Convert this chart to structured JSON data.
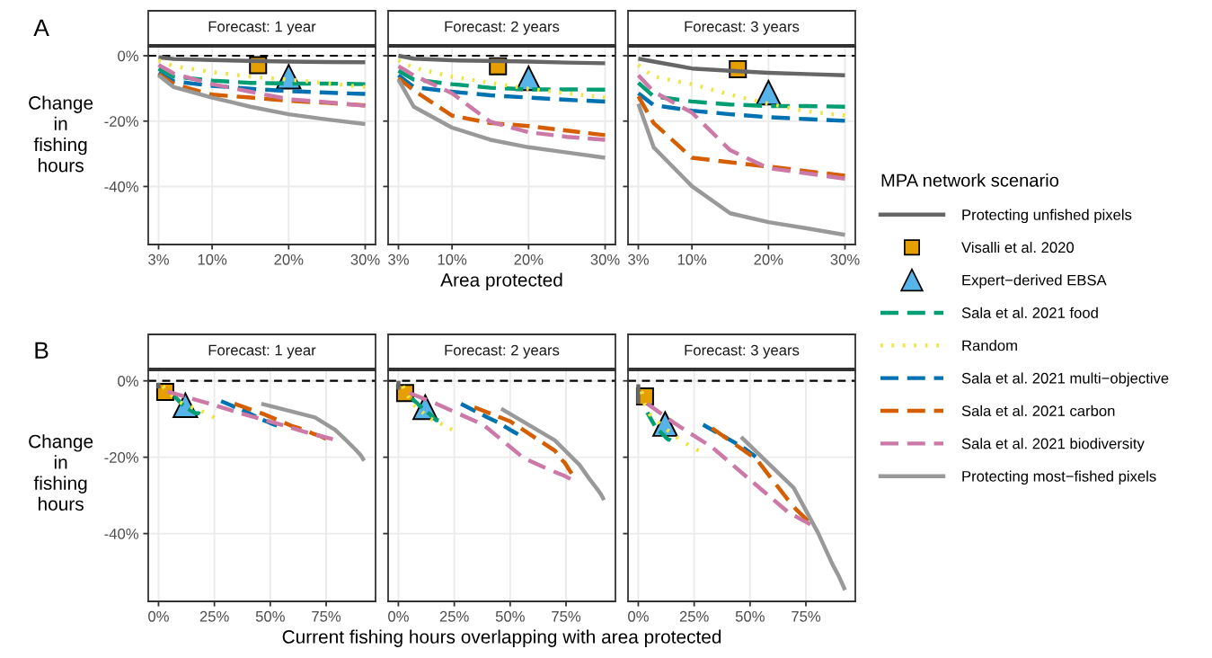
{
  "chart_data": [
    {
      "type": "line",
      "title": "Forecast: 1 year",
      "ylabel": "Change\nin\nfishing\nhours",
      "annotations": [
        "A"
      ],
      "legend": "right",
      "legend_title": "MPA network scenario",
      "grid": true,
      "xlim": [
        1.65,
        31.35
      ],
      "xticks": [
        {
          "value": 3,
          "label": "3%"
        },
        {
          "value": 10,
          "label": "10%"
        },
        {
          "value": 20,
          "label": "20%"
        },
        {
          "value": 30,
          "label": "30%"
        }
      ],
      "ylim": [
        -57.75,
        2.75
      ],
      "yticks": [
        {
          "value": -40,
          "label": "-40%"
        },
        {
          "value": -20,
          "label": "-20%"
        },
        {
          "value": 0,
          "label": "0%"
        }
      ],
      "ref_lines": [
        {
          "axis": "y",
          "value": 0,
          "color": "#000000",
          "line_style": "dashed"
        }
      ],
      "x": [
        3,
        5,
        10,
        15,
        20,
        25,
        30
      ],
      "series": [
        {
          "name": "Protecting unfished pixels",
          "color": "#666666",
          "line_style": "solid",
          "values": [
            -0.5,
            -1.0,
            -1.3,
            -1.6,
            -1.8,
            -1.9,
            -2.0
          ]
        },
        {
          "name": "Visalli et al. 2020",
          "type": "scatter",
          "marker": "square",
          "color": "#e69f00",
          "x": [
            16
          ],
          "values": [
            -2.9
          ]
        },
        {
          "name": "Expert−derived EBSA",
          "type": "scatter",
          "marker": "triangle",
          "color": "#56b4e9",
          "x": [
            20
          ],
          "values": [
            -6.4
          ]
        },
        {
          "name": "Sala et al. 2021 food",
          "color": "#009e73",
          "line_style": "dashed",
          "values": [
            -4,
            -6.4,
            -7.6,
            -8.3,
            -8.5,
            -8.5,
            -8.7
          ]
        },
        {
          "name": "Random",
          "color": "#f0e442",
          "line_style": "dotted",
          "values": [
            -1.4,
            -3.2,
            -5,
            -6.4,
            -7.3,
            -8.4,
            -9.6
          ]
        },
        {
          "name": "Sala et al. 2021 multi−objective",
          "color": "#0072b2",
          "line_style": "dashed",
          "values": [
            -5.3,
            -7.8,
            -9.2,
            -10.1,
            -10.8,
            -11.3,
            -11.7
          ]
        },
        {
          "name": "Sala et al. 2021 carbon",
          "color": "#d55e00",
          "line_style": "dashed",
          "values": [
            -5.6,
            -8.7,
            -11.9,
            -12.8,
            -13.8,
            -14.4,
            -15.2
          ]
        },
        {
          "name": "Sala et al. 2021 biodiversity",
          "color": "#cc79a7",
          "line_style": "dashed",
          "values": [
            -2.8,
            -5.5,
            -8.7,
            -11,
            -13.3,
            -14.2,
            -15.3
          ]
        },
        {
          "name": "Protecting most−fished pixels",
          "color": "#999999",
          "line_style": "solid",
          "values": [
            -6,
            -9.6,
            -12.8,
            -15.6,
            -17.9,
            -19.5,
            -20.9
          ]
        }
      ]
    },
    {
      "type": "line",
      "title": "Forecast: 2 years",
      "xlabel": "Area protected",
      "tick_labels": "x",
      "grid": true,
      "xlim": [
        1.65,
        31.35
      ],
      "xticks": [
        {
          "value": 3,
          "label": "3%"
        },
        {
          "value": 10,
          "label": "10%"
        },
        {
          "value": 20,
          "label": "20%"
        },
        {
          "value": 30,
          "label": "30%"
        }
      ],
      "ylim": [
        -57.75,
        2.75
      ],
      "ref_lines": [
        {
          "axis": "y",
          "value": 0,
          "color": "#000000",
          "line_style": "dashed"
        }
      ],
      "x": [
        3,
        5,
        10,
        15,
        20,
        25,
        30
      ],
      "series": [
        {
          "color": "#666666",
          "line_style": "solid",
          "values": [
            0,
            -0.9,
            -1.4,
            -1.6,
            -1.8,
            -2.1,
            -2.3
          ]
        },
        {
          "type": "scatter",
          "marker": "square",
          "color": "#e69f00",
          "x": [
            16
          ],
          "values": [
            -3.2
          ]
        },
        {
          "type": "scatter",
          "marker": "triangle",
          "color": "#56b4e9",
          "x": [
            20
          ],
          "values": [
            -6.9
          ]
        },
        {
          "color": "#009e73",
          "line_style": "dashed",
          "values": [
            -4.6,
            -7.3,
            -8.7,
            -9.8,
            -10.3,
            -10.3,
            -10.4
          ]
        },
        {
          "color": "#f0e442",
          "line_style": "dotted",
          "values": [
            -1.4,
            -3.7,
            -6.4,
            -8.3,
            -10.1,
            -11.5,
            -12.8
          ]
        },
        {
          "color": "#0072b2",
          "line_style": "dashed",
          "values": [
            -6,
            -9.6,
            -11,
            -12.1,
            -12.8,
            -13.5,
            -14
          ]
        },
        {
          "color": "#d55e00",
          "line_style": "dashed",
          "values": [
            -6.9,
            -10.6,
            -18.3,
            -20.6,
            -21.5,
            -22.9,
            -24.3
          ]
        },
        {
          "color": "#cc79a7",
          "line_style": "dashed",
          "values": [
            -3.2,
            -6,
            -11.5,
            -20.2,
            -23.4,
            -24.8,
            -25.7
          ]
        },
        {
          "color": "#999999",
          "line_style": "solid",
          "values": [
            -7.3,
            -15.6,
            -22,
            -25.7,
            -28,
            -29.6,
            -31.2
          ]
        }
      ]
    },
    {
      "type": "line",
      "title": "Forecast: 3 years",
      "tick_labels": "x",
      "grid": true,
      "xlim": [
        1.65,
        31.35
      ],
      "xticks": [
        {
          "value": 3,
          "label": "3%"
        },
        {
          "value": 10,
          "label": "10%"
        },
        {
          "value": 20,
          "label": "20%"
        },
        {
          "value": 30,
          "label": "30%"
        }
      ],
      "ylim": [
        -57.75,
        2.75
      ],
      "ref_lines": [
        {
          "axis": "y",
          "value": 0,
          "color": "#000000",
          "line_style": "dashed"
        }
      ],
      "x": [
        3,
        5,
        10,
        15,
        20,
        25,
        30
      ],
      "series": [
        {
          "color": "#666666",
          "line_style": "solid",
          "values": [
            -0.9,
            -1.8,
            -3.9,
            -4.6,
            -5.2,
            -5.6,
            -6
          ]
        },
        {
          "type": "scatter",
          "marker": "square",
          "color": "#e69f00",
          "x": [
            16
          ],
          "values": [
            -4.1
          ]
        },
        {
          "type": "scatter",
          "marker": "triangle",
          "color": "#56b4e9",
          "x": [
            20
          ],
          "values": [
            -11.3
          ]
        },
        {
          "color": "#009e73",
          "line_style": "dashed",
          "values": [
            -8.3,
            -12.4,
            -14,
            -14.9,
            -15.4,
            -15.4,
            -15.6
          ]
        },
        {
          "color": "#f0e442",
          "line_style": "dotted",
          "values": [
            -2.8,
            -6.4,
            -8.7,
            -11.9,
            -14.7,
            -17,
            -18.3
          ]
        },
        {
          "color": "#0072b2",
          "line_style": "dashed",
          "values": [
            -11.5,
            -15.1,
            -16.8,
            -17.9,
            -18.8,
            -19.4,
            -19.9
          ]
        },
        {
          "color": "#d55e00",
          "line_style": "dashed",
          "values": [
            -12.4,
            -20.6,
            -31.2,
            -32.6,
            -33.9,
            -35.3,
            -36.7
          ]
        },
        {
          "color": "#cc79a7",
          "line_style": "dashed",
          "values": [
            -6,
            -11,
            -17.4,
            -28.9,
            -34.4,
            -36,
            -37.6
          ]
        },
        {
          "color": "#999999",
          "line_style": "solid",
          "values": [
            -14.7,
            -28,
            -39.9,
            -48.2,
            -50.9,
            -52.8,
            -54.8
          ]
        }
      ]
    },
    {
      "type": "line",
      "title": "Forecast: 1 year",
      "ylabel": "Change\nin\nfishing\nhours",
      "annotations": [
        "B"
      ],
      "grid": true,
      "xlim": [
        -4.6,
        97.1
      ],
      "xticks": [
        {
          "value": 0,
          "label": "0%"
        },
        {
          "value": 25,
          "label": "25%"
        },
        {
          "value": 50,
          "label": "50%"
        },
        {
          "value": 75,
          "label": "75%"
        }
      ],
      "ylim": [
        -57.75,
        2.75
      ],
      "yticks": [
        {
          "value": -40,
          "label": "-40%"
        },
        {
          "value": -20,
          "label": "-20%"
        },
        {
          "value": 0,
          "label": "0%"
        }
      ],
      "ref_lines": [
        {
          "axis": "y",
          "value": 0,
          "color": "#000000",
          "line_style": "dashed"
        }
      ],
      "series": [
        {
          "color": "#666666",
          "line_style": "solid",
          "x": [
            0,
            0,
            0,
            0,
            0,
            0,
            0
          ],
          "values": [
            -0.5,
            -1.0,
            -1.3,
            -1.6,
            -1.8,
            -1.9,
            -2.0
          ]
        },
        {
          "type": "scatter",
          "marker": "square",
          "color": "#e69f00",
          "x": [
            3
          ],
          "values": [
            -2.9
          ]
        },
        {
          "type": "scatter",
          "marker": "triangle",
          "color": "#56b4e9",
          "x": [
            12
          ],
          "values": [
            -6.4
          ]
        },
        {
          "color": "#009e73",
          "line_style": "dashed",
          "x": [
            7,
            11,
            14,
            16,
            17,
            18,
            18.5
          ],
          "values": [
            -4,
            -6.4,
            -7.6,
            -8.3,
            -8.5,
            -8.5,
            -8.7
          ]
        },
        {
          "color": "#f0e442",
          "line_style": "dotted",
          "x": [
            2,
            5,
            8,
            12,
            17,
            21,
            25
          ],
          "values": [
            -1.4,
            -3.2,
            -5,
            -6.4,
            -7.3,
            -8.4,
            -9.6
          ]
        },
        {
          "color": "#0072b2",
          "line_style": "dashed",
          "x": [
            28,
            38,
            43,
            46,
            49,
            51,
            53
          ],
          "values": [
            -5.3,
            -7.8,
            -9.2,
            -10.1,
            -10.8,
            -11.3,
            -11.7
          ]
        },
        {
          "color": "#d55e00",
          "line_style": "dashed",
          "x": [
            34,
            47,
            60,
            65,
            69,
            72,
            75
          ],
          "values": [
            -6,
            -8.7,
            -11.9,
            -12.8,
            -13.8,
            -14.4,
            -15.2
          ]
        },
        {
          "color": "#cc79a7",
          "line_style": "dashed",
          "x": [
            4,
            20,
            38,
            52,
            65,
            71,
            78
          ],
          "values": [
            -2.8,
            -5.5,
            -8.7,
            -11,
            -13.3,
            -14.2,
            -15.3
          ]
        },
        {
          "color": "#999999",
          "line_style": "solid",
          "x": [
            46,
            70,
            79,
            84,
            88,
            90.5,
            92
          ],
          "values": [
            -6,
            -9.6,
            -12.8,
            -15.6,
            -17.9,
            -19.5,
            -20.9
          ]
        }
      ]
    },
    {
      "type": "line",
      "title": "Forecast: 2 years",
      "xlabel": "Current fishing hours overlapping with area protected",
      "tick_labels": "x",
      "grid": true,
      "xlim": [
        -4.6,
        97.1
      ],
      "xticks": [
        {
          "value": 0,
          "label": "0%"
        },
        {
          "value": 25,
          "label": "25%"
        },
        {
          "value": 50,
          "label": "50%"
        },
        {
          "value": 75,
          "label": "75%"
        }
      ],
      "ylim": [
        -57.75,
        2.75
      ],
      "ref_lines": [
        {
          "axis": "y",
          "value": 0,
          "color": "#000000",
          "line_style": "dashed"
        }
      ],
      "series": [
        {
          "color": "#666666",
          "line_style": "solid",
          "x": [
            0,
            0,
            0,
            0,
            0,
            0,
            0
          ],
          "values": [
            0,
            -0.9,
            -1.4,
            -1.6,
            -1.8,
            -2.1,
            -2.3
          ]
        },
        {
          "type": "scatter",
          "marker": "square",
          "color": "#e69f00",
          "x": [
            3
          ],
          "values": [
            -3.2
          ]
        },
        {
          "type": "scatter",
          "marker": "triangle",
          "color": "#56b4e9",
          "x": [
            12
          ],
          "values": [
            -6.9
          ]
        },
        {
          "color": "#009e73",
          "line_style": "dashed",
          "x": [
            6,
            11,
            14,
            16,
            17,
            17.5,
            18
          ],
          "values": [
            -4.6,
            -7.3,
            -8.7,
            -9.8,
            -10.3,
            -10.3,
            -10.4
          ]
        },
        {
          "color": "#f0e442",
          "line_style": "dotted",
          "x": [
            2,
            4,
            7,
            11,
            15,
            20,
            24
          ],
          "values": [
            -1.4,
            -3.7,
            -6.4,
            -8.3,
            -10.1,
            -11.5,
            -12.8
          ]
        },
        {
          "color": "#0072b2",
          "line_style": "dashed",
          "x": [
            28,
            40,
            45,
            48,
            50,
            52,
            53.5
          ],
          "values": [
            -6,
            -9.6,
            -11,
            -12.1,
            -12.8,
            -13.5,
            -14
          ]
        },
        {
          "color": "#d55e00",
          "line_style": "dashed",
          "x": [
            34,
            50,
            70,
            73,
            74.5,
            76,
            77.5
          ],
          "values": [
            -6.9,
            -10.6,
            -18.3,
            -20.6,
            -21.5,
            -22.9,
            -24.3
          ]
        },
        {
          "color": "#cc79a7",
          "line_style": "dashed",
          "x": [
            5,
            17,
            38,
            56,
            68,
            74,
            77
          ],
          "values": [
            -3.2,
            -6,
            -11.5,
            -20.2,
            -23.4,
            -24.8,
            -25.7
          ]
        },
        {
          "color": "#999999",
          "line_style": "solid",
          "x": [
            46,
            70,
            81,
            85.5,
            88.5,
            90.5,
            92
          ],
          "values": [
            -7.3,
            -15.6,
            -22,
            -25.7,
            -28,
            -29.6,
            -31.2
          ]
        }
      ]
    },
    {
      "type": "line",
      "title": "Forecast: 3 years",
      "tick_labels": "x",
      "grid": true,
      "xlim": [
        -4.6,
        97.1
      ],
      "xticks": [
        {
          "value": 0,
          "label": "0%"
        },
        {
          "value": 25,
          "label": "25%"
        },
        {
          "value": 50,
          "label": "50%"
        },
        {
          "value": 75,
          "label": "75%"
        }
      ],
      "ylim": [
        -57.75,
        2.75
      ],
      "ref_lines": [
        {
          "axis": "y",
          "value": 0,
          "color": "#000000",
          "line_style": "dashed"
        }
      ],
      "series": [
        {
          "color": "#666666",
          "line_style": "solid",
          "x": [
            0,
            0,
            0,
            0,
            0,
            0,
            0
          ],
          "values": [
            -0.9,
            -1.8,
            -3.9,
            -4.6,
            -5.2,
            -5.6,
            -6
          ]
        },
        {
          "type": "scatter",
          "marker": "square",
          "color": "#e69f00",
          "x": [
            3
          ],
          "values": [
            -4.1
          ]
        },
        {
          "type": "scatter",
          "marker": "triangle",
          "color": "#56b4e9",
          "x": [
            12
          ],
          "values": [
            -11.3
          ]
        },
        {
          "color": "#009e73",
          "line_style": "dashed",
          "x": [
            4,
            8,
            11,
            12.5,
            13.5,
            14,
            14.5
          ],
          "values": [
            -8.3,
            -12.4,
            -14,
            -14.9,
            -15.4,
            -15.4,
            -15.6
          ]
        },
        {
          "color": "#f0e442",
          "line_style": "dotted",
          "x": [
            1.5,
            3,
            5,
            11,
            17,
            23,
            27
          ],
          "values": [
            -2.8,
            -6.4,
            -8.7,
            -11.9,
            -14.7,
            -17,
            -18.3
          ]
        },
        {
          "color": "#0072b2",
          "line_style": "dashed",
          "x": [
            29,
            40,
            45,
            48,
            50,
            51.5,
            52.5
          ],
          "values": [
            -11.5,
            -15.1,
            -16.8,
            -17.9,
            -18.8,
            -19.4,
            -19.9
          ]
        },
        {
          "color": "#d55e00",
          "line_style": "dashed",
          "x": [
            33,
            53,
            67,
            69,
            71,
            73.5,
            76
          ],
          "values": [
            -12.4,
            -20.6,
            -31.2,
            -32.6,
            -33.9,
            -35.3,
            -36.7
          ]
        },
        {
          "color": "#cc79a7",
          "line_style": "dashed",
          "x": [
            4,
            16,
            33,
            56,
            67,
            72,
            77
          ],
          "values": [
            -6,
            -11,
            -17.4,
            -28.9,
            -34.4,
            -36,
            -37.6
          ]
        },
        {
          "color": "#999999",
          "line_style": "solid",
          "x": [
            46,
            69.5,
            80.5,
            87,
            89.5,
            91,
            92.5
          ],
          "values": [
            -14.7,
            -28,
            -39.9,
            -48.2,
            -50.9,
            -52.8,
            -54.8
          ]
        }
      ]
    }
  ]
}
